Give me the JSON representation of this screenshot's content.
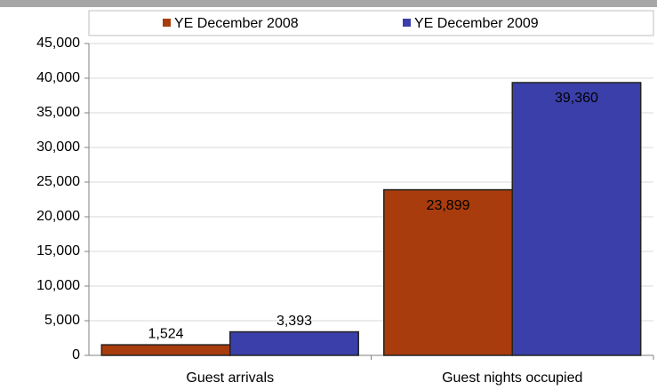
{
  "chart_data": {
    "type": "bar",
    "categories": [
      "Guest arrivals",
      "Guest nights occupied"
    ],
    "series": [
      {
        "name": "YE December 2008",
        "color": "#a83c0c",
        "values": [
          1524,
          23899
        ],
        "value_labels": [
          "1,524",
          "23,899"
        ]
      },
      {
        "name": "YE December 2009",
        "color": "#3b3fa9",
        "values": [
          3393,
          39360
        ],
        "value_labels": [
          "3,393",
          "39,360"
        ]
      }
    ],
    "ylim": [
      0,
      45000
    ],
    "yticks": [
      0,
      {
        "value": 5000,
        "label": "5,000"
      },
      {
        "value": 10000,
        "label": "10,000"
      },
      {
        "value": 15000,
        "label": "15,000"
      },
      {
        "value": 20000,
        "label": "20,000"
      },
      {
        "value": 25000,
        "label": "25,000"
      },
      {
        "value": 30000,
        "label": "30,000"
      },
      {
        "value": 35000,
        "label": "35,000"
      },
      {
        "value": 40000,
        "label": "40,000"
      },
      {
        "value": 45000,
        "label": "45,000"
      }
    ],
    "grid": true,
    "legend": "top"
  }
}
